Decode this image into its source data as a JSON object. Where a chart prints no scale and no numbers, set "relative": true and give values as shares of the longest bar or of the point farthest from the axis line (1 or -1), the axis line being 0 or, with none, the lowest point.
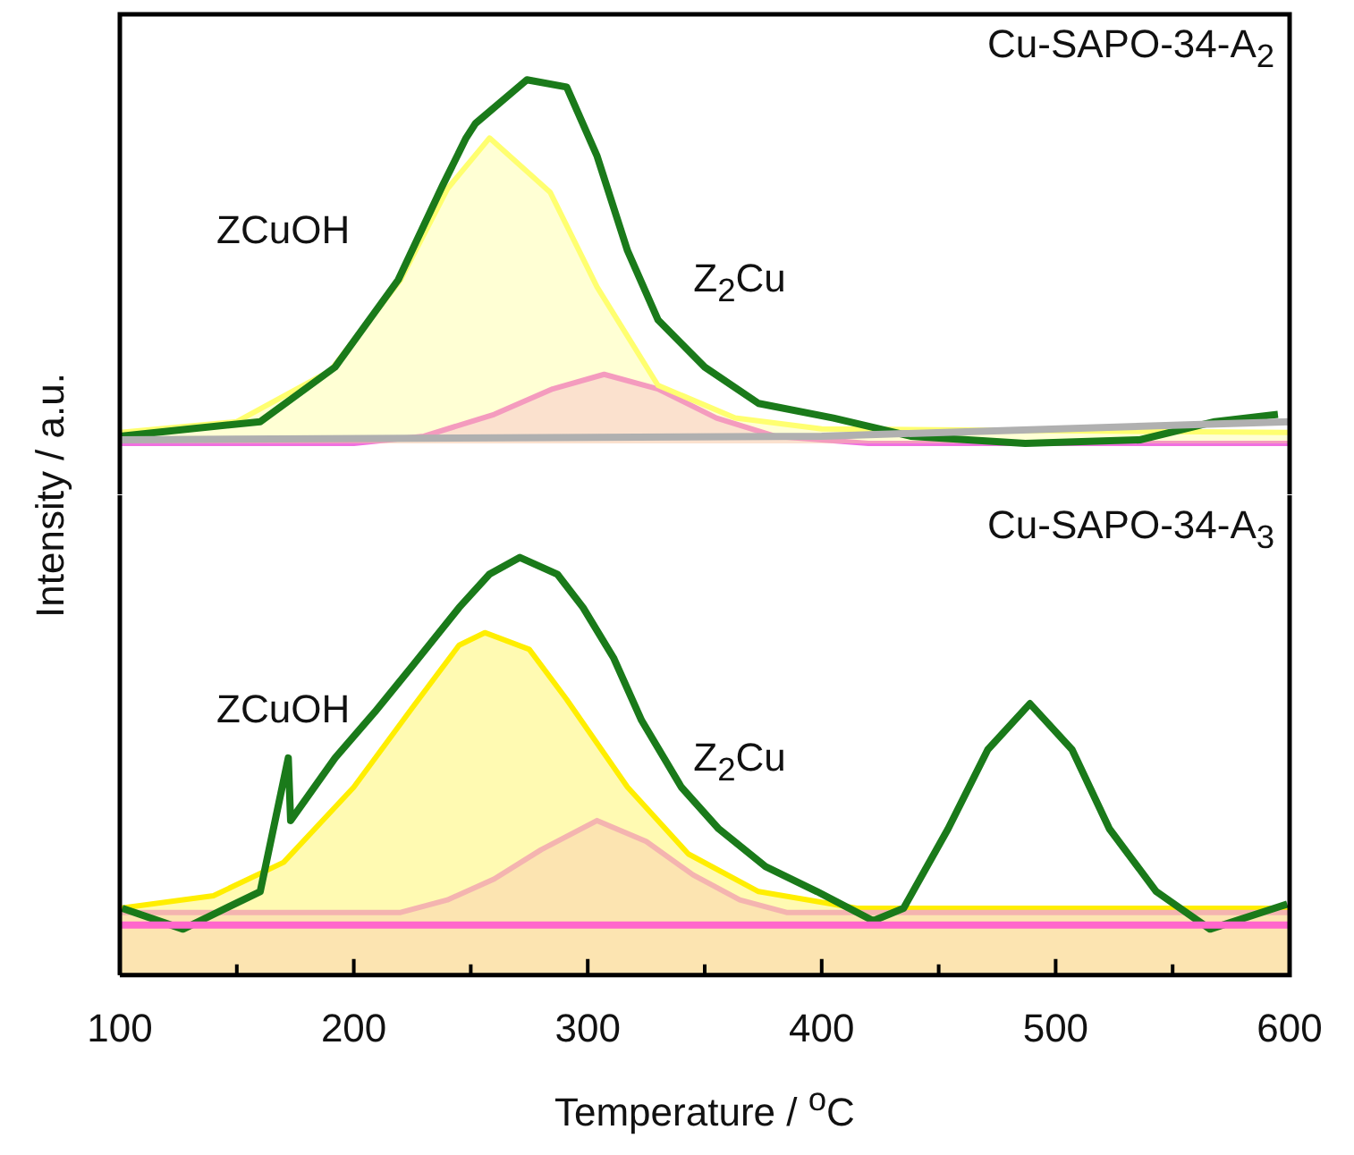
{
  "chart_data": [
    {
      "type": "line",
      "title": "Cu-SAPO-34-A$_{2}$",
      "ylabel": "Intensity / a.u.",
      "relative": true,
      "xlim": [
        100,
        600
      ],
      "tick_labels": false,
      "series": [
        {
          "type": "area",
          "color": "#ffff70",
          "x": [
            100,
            150,
            190,
            220,
            240,
            258,
            284,
            304,
            330,
            363,
            400,
            600
          ],
          "values": [
            0.03,
            0.06,
            0.2,
            0.45,
            0.7,
            0.84,
            0.69,
            0.43,
            0.16,
            0.07,
            0.04,
            0.03
          ]
        },
        {
          "type": "area",
          "color": "#f070e0",
          "x": [
            100,
            200,
            230,
            260,
            285,
            307,
            330,
            355,
            380,
            420,
            600
          ],
          "values": [
            0,
            0,
            0.02,
            0.08,
            0.15,
            0.19,
            0.15,
            0.07,
            0.02,
            0,
            0
          ]
        },
        {
          "type": "line",
          "color": "#b0b0b0",
          "x": [
            100,
            400,
            600
          ],
          "values": [
            0.01,
            0.02,
            0.06
          ]
        },
        {
          "type": "line",
          "color": "#1a7a1a",
          "x": [
            100,
            130,
            160,
            192,
            219,
            238,
            248,
            252,
            274,
            291,
            304,
            317,
            330,
            350,
            373,
            405,
            438,
            487,
            536,
            568,
            595
          ],
          "values": [
            0.02,
            0.04,
            0.06,
            0.21,
            0.45,
            0.71,
            0.84,
            0.88,
            1,
            0.98,
            0.79,
            0.53,
            0.34,
            0.21,
            0.11,
            0.07,
            0.02,
            0,
            0.01,
            0.06,
            0.08
          ]
        }
      ],
      "annotations": [
        "ZCuOH",
        "Z$_{2}$Cu"
      ]
    },
    {
      "type": "line",
      "title": "Cu-SAPO-34-A$_{3}$",
      "xlabel": "Temperature / $^{o}$C",
      "relative": true,
      "xlim": [
        100,
        600
      ],
      "tick_labels": "x",
      "xticks": [
        100,
        {
          "value": 150,
          "label": null
        },
        200,
        {
          "value": 250,
          "label": null
        },
        300,
        {
          "value": 350,
          "label": null
        },
        400,
        {
          "value": 450,
          "label": null
        },
        500,
        {
          "value": 550,
          "label": null
        },
        600
      ],
      "series": [
        {
          "type": "line",
          "color": "#ff66cc",
          "x": [
            100,
            600
          ],
          "values": [
            0.12,
            0.12
          ]
        },
        {
          "type": "area",
          "color": "#f4b4b0",
          "x": [
            100,
            220,
            240,
            260,
            280,
            304,
            325,
            345,
            365,
            385,
            600
          ],
          "values": [
            0.15,
            0.15,
            0.18,
            0.23,
            0.3,
            0.37,
            0.32,
            0.24,
            0.18,
            0.15,
            0.15
          ]
        },
        {
          "type": "area",
          "color": "#ffee00",
          "x": [
            100,
            140,
            170,
            200,
            225,
            245,
            256,
            275,
            291,
            317,
            343,
            373,
            415,
            600
          ],
          "values": [
            0.16,
            0.19,
            0.27,
            0.45,
            0.64,
            0.79,
            0.82,
            0.78,
            0.66,
            0.45,
            0.29,
            0.2,
            0.16,
            0.16
          ]
        },
        {
          "type": "line",
          "color": "#1a7a1a",
          "x": [
            101,
            127,
            160,
            172,
            173,
            192,
            209,
            225,
            245,
            258,
            271,
            287,
            298,
            311,
            323,
            340,
            356,
            376,
            398,
            422,
            435,
            454,
            471,
            489,
            507,
            523,
            543,
            566,
            599
          ],
          "values": [
            0.16,
            0.11,
            0.2,
            0.52,
            0.37,
            0.52,
            0.63,
            0.74,
            0.88,
            0.96,
            1,
            0.96,
            0.88,
            0.76,
            0.61,
            0.45,
            0.35,
            0.26,
            0.2,
            0.13,
            0.16,
            0.35,
            0.54,
            0.65,
            0.54,
            0.35,
            0.2,
            0.11,
            0.17
          ]
        }
      ],
      "annotations": [
        "ZCuOH",
        "Z$_{2}$Cu"
      ]
    }
  ]
}
